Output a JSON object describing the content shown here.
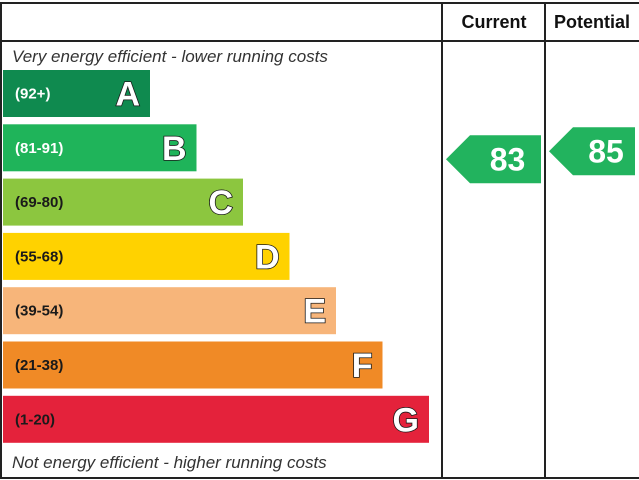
{
  "chart_data": {
    "type": "bar",
    "columns": {
      "current": "Current",
      "potential": "Potential"
    },
    "top_caption": "Very energy efficient - lower running costs",
    "bottom_caption": "Not energy efficient - higher running costs",
    "bands": [
      {
        "letter": "A",
        "range": "(92+)",
        "color": "#0f8a4f",
        "range_color": "#ffffff"
      },
      {
        "letter": "B",
        "range": "(81-91)",
        "color": "#1fb45a",
        "range_color": "#ffffff"
      },
      {
        "letter": "C",
        "range": "(69-80)",
        "color": "#8cc63f",
        "range_color": "#1a1a1a"
      },
      {
        "letter": "D",
        "range": "(55-68)",
        "color": "#ffd200",
        "range_color": "#1a1a1a"
      },
      {
        "letter": "E",
        "range": "(39-54)",
        "color": "#f7b57a",
        "range_color": "#1a1a1a"
      },
      {
        "letter": "F",
        "range": "(21-38)",
        "color": "#f08a26",
        "range_color": "#1a1a1a"
      },
      {
        "letter": "G",
        "range": "(1-20)",
        "color": "#e4223b",
        "range_color": "#1a1a1a"
      }
    ],
    "current": {
      "value": 83,
      "band": "B",
      "color": "#22b35e"
    },
    "potential": {
      "value": 85,
      "band": "B",
      "color": "#22b35e"
    }
  }
}
